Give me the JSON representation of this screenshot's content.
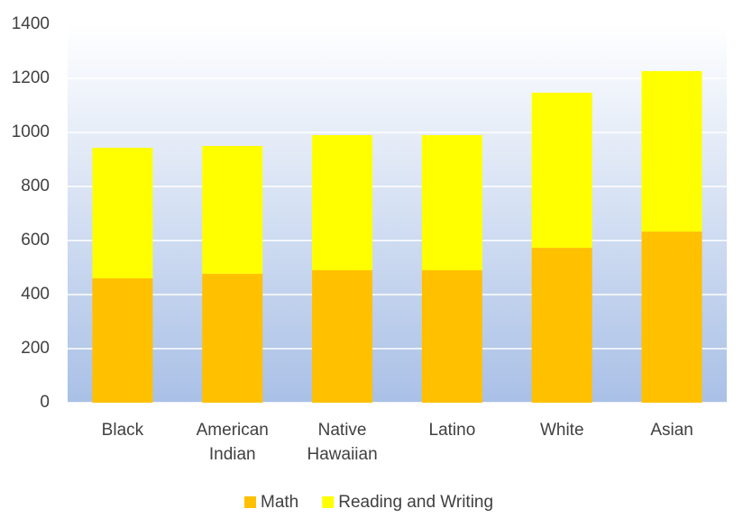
{
  "chart_data": {
    "type": "stacked_bar",
    "categories": [
      "Black",
      "American Indian",
      "Native Hawaiian",
      "Latino",
      "White",
      "Asian"
    ],
    "series": [
      {
        "name": "Math",
        "color": "#ffc000",
        "values": [
          460,
          477,
          490,
          490,
          573,
          633
        ]
      },
      {
        "name": "Reading and Writing",
        "color": "#ffff00",
        "values": [
          483,
          473,
          500,
          500,
          574,
          594
        ]
      }
    ],
    "ylim": [
      0,
      1400
    ],
    "yticks": [
      0,
      200,
      400,
      600,
      800,
      1000,
      1200,
      1400
    ],
    "grid": true,
    "legend": "bottom"
  }
}
